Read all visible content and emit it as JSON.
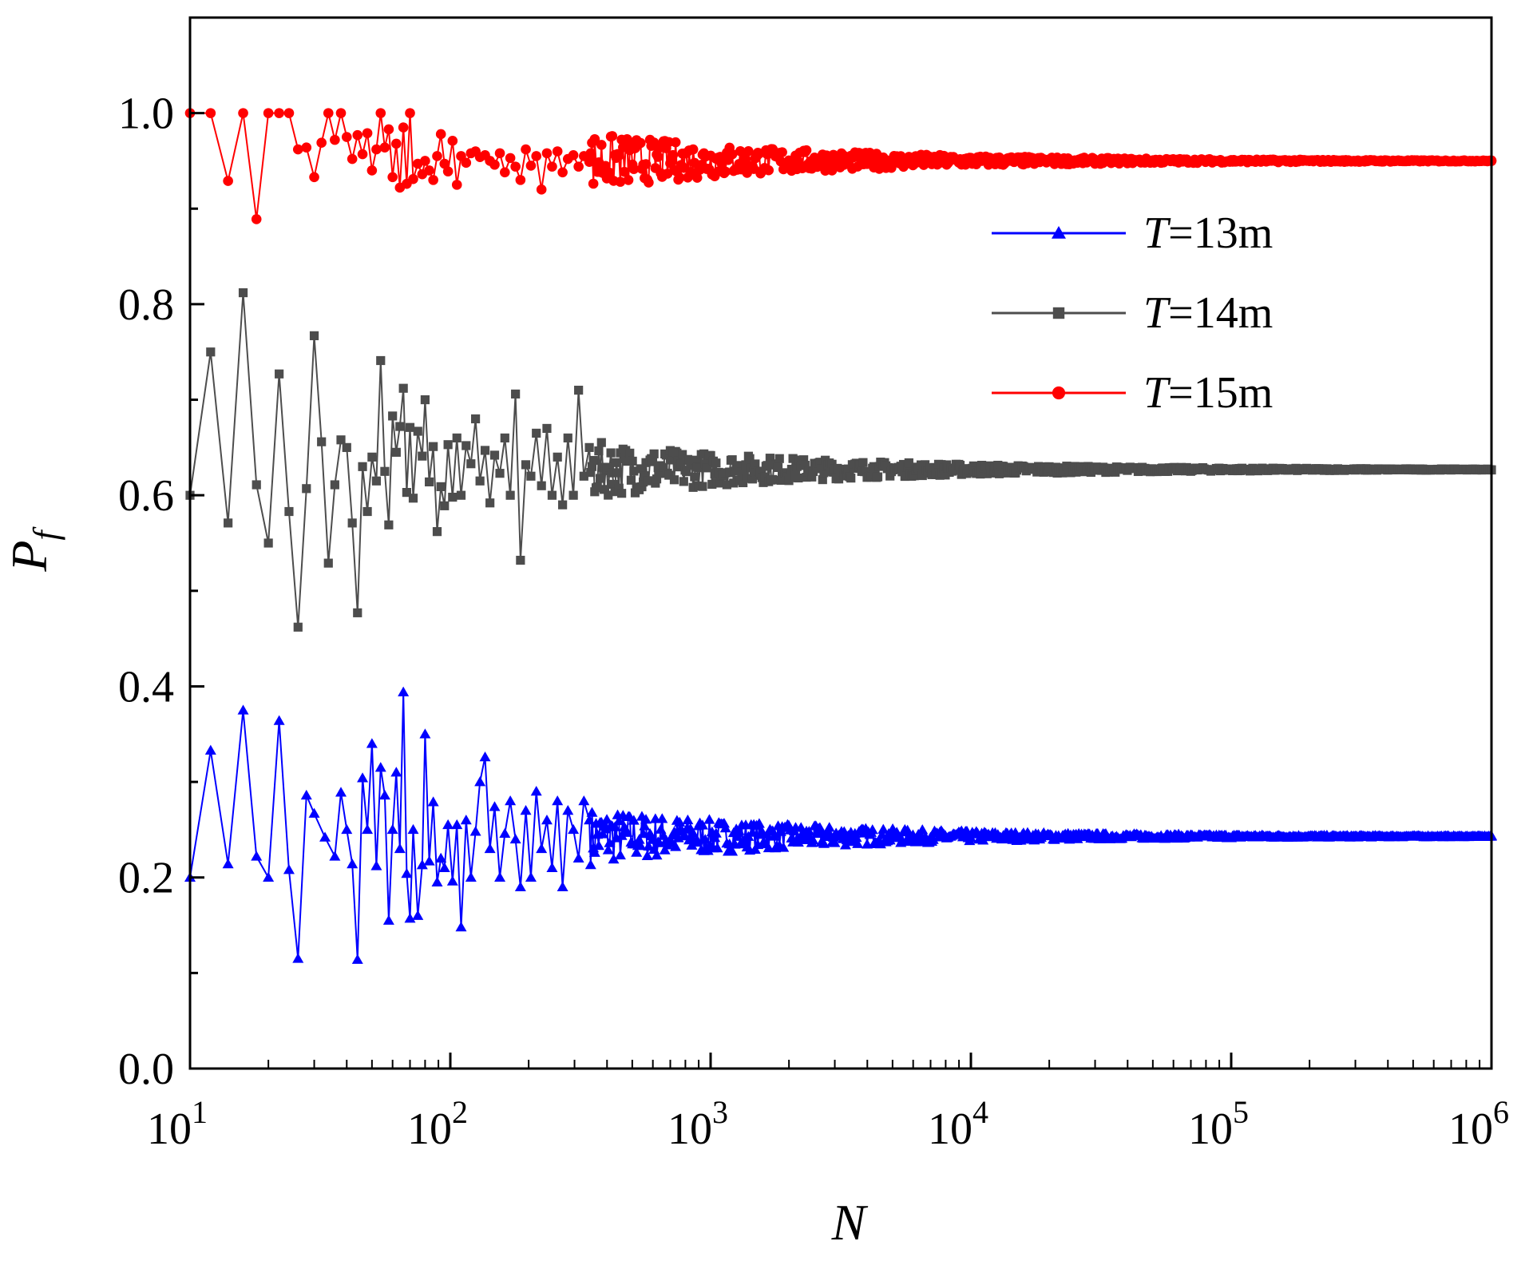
{
  "chart_data": {
    "type": "line",
    "xscale": "log",
    "xlim": [
      10,
      1000000
    ],
    "ylim": [
      0,
      1.1
    ],
    "xlabel": "N",
    "ylabel_main": "P",
    "ylabel_sub": "f",
    "xtick_exponents": [
      "1",
      "2",
      "3",
      "4",
      "5",
      "6"
    ],
    "xtick_base": "10",
    "ytick_values": [
      0.0,
      0.2,
      0.4,
      0.6,
      0.8,
      1.0
    ],
    "ytick_labels": [
      "0.0",
      "0.2",
      "0.4",
      "0.6",
      "0.8",
      "1.0"
    ],
    "legend_position": "right",
    "series": [
      {
        "name": "T=13m",
        "legend_italic": "T",
        "legend_rest": "=13m",
        "color": "#0000ff",
        "marker": "triangle",
        "final": 0.243,
        "x": [
          10,
          12,
          14,
          16,
          18,
          20,
          22,
          24,
          26,
          28,
          30,
          33,
          36,
          38,
          40,
          42,
          44,
          46,
          48,
          50,
          52,
          54,
          56,
          58,
          60,
          62,
          64,
          66,
          68,
          70,
          72,
          75,
          78,
          80,
          83,
          86,
          89,
          92,
          95,
          98,
          102,
          106,
          110,
          115,
          120,
          125,
          130,
          136,
          142,
          148,
          155,
          162,
          170,
          178,
          186,
          195,
          204,
          214,
          224,
          235,
          246,
          258,
          270,
          283,
          297,
          311,
          326,
          342
        ],
        "y": [
          0.2,
          0.333,
          0.214,
          0.375,
          0.222,
          0.2,
          0.364,
          0.208,
          0.115,
          0.286,
          0.267,
          0.242,
          0.222,
          0.289,
          0.25,
          0.214,
          0.114,
          0.304,
          0.25,
          0.34,
          0.212,
          0.315,
          0.286,
          0.155,
          0.25,
          0.31,
          0.23,
          0.394,
          0.204,
          0.157,
          0.25,
          0.16,
          0.213,
          0.35,
          0.217,
          0.279,
          0.195,
          0.22,
          0.21,
          0.255,
          0.196,
          0.255,
          0.148,
          0.26,
          0.2,
          0.248,
          0.3,
          0.326,
          0.23,
          0.274,
          0.2,
          0.246,
          0.28,
          0.24,
          0.19,
          0.27,
          0.2,
          0.29,
          0.23,
          0.26,
          0.21,
          0.28,
          0.19,
          0.27,
          0.25,
          0.22,
          0.28,
          0.26
        ]
      },
      {
        "name": "T=14m",
        "legend_italic": "T",
        "legend_rest": "=14m",
        "color": "#4d4d4d",
        "marker": "square",
        "final": 0.627,
        "x": [
          10,
          12,
          14,
          16,
          18,
          20,
          22,
          24,
          26,
          28,
          30,
          32,
          34,
          36,
          38,
          40,
          42,
          44,
          46,
          48,
          50,
          52,
          54,
          56,
          58,
          60,
          62,
          64,
          66,
          68,
          70,
          72,
          75,
          78,
          80,
          83,
          86,
          89,
          92,
          95,
          98,
          102,
          106,
          110,
          115,
          120,
          125,
          130,
          136,
          142,
          148,
          155,
          162,
          170,
          178,
          186,
          195,
          204,
          214,
          224,
          235,
          246,
          258,
          270,
          283,
          297,
          311,
          326,
          342
        ],
        "y": [
          0.6,
          0.75,
          0.571,
          0.812,
          0.611,
          0.55,
          0.727,
          0.583,
          0.462,
          0.607,
          0.767,
          0.656,
          0.529,
          0.611,
          0.658,
          0.65,
          0.571,
          0.477,
          0.63,
          0.583,
          0.64,
          0.615,
          0.741,
          0.625,
          0.569,
          0.683,
          0.645,
          0.672,
          0.712,
          0.603,
          0.671,
          0.597,
          0.667,
          0.641,
          0.7,
          0.614,
          0.651,
          0.562,
          0.609,
          0.589,
          0.653,
          0.598,
          0.66,
          0.6,
          0.652,
          0.633,
          0.68,
          0.615,
          0.647,
          0.592,
          0.642,
          0.623,
          0.66,
          0.6,
          0.706,
          0.532,
          0.632,
          0.62,
          0.665,
          0.61,
          0.67,
          0.6,
          0.64,
          0.59,
          0.66,
          0.6,
          0.71,
          0.62,
          0.65
        ]
      },
      {
        "name": "T=15m",
        "legend_italic": "T",
        "legend_rest": "=15m",
        "color": "#ff0000",
        "marker": "circle",
        "final": 0.95,
        "x": [
          10,
          12,
          14,
          16,
          18,
          20,
          22,
          24,
          26,
          28,
          30,
          32,
          34,
          36,
          38,
          40,
          42,
          44,
          46,
          48,
          50,
          52,
          54,
          56,
          58,
          60,
          62,
          64,
          66,
          68,
          70,
          72,
          75,
          78,
          80,
          83,
          86,
          89,
          92,
          95,
          98,
          102,
          106,
          110,
          115,
          120,
          125,
          130,
          136,
          142,
          148,
          155,
          162,
          170,
          178,
          186,
          195,
          204,
          214,
          224,
          235,
          246,
          258,
          270,
          283,
          297,
          311,
          326,
          342
        ],
        "y": [
          1.0,
          1.0,
          0.929,
          1.0,
          0.889,
          1.0,
          1.0,
          1.0,
          0.962,
          0.964,
          0.933,
          0.969,
          1.0,
          0.972,
          1.0,
          0.975,
          0.952,
          0.977,
          0.957,
          0.979,
          0.94,
          0.962,
          1.0,
          0.964,
          0.983,
          0.933,
          0.968,
          0.922,
          0.985,
          0.926,
          1.0,
          0.931,
          0.947,
          0.936,
          0.95,
          0.94,
          0.93,
          0.955,
          0.978,
          0.947,
          0.939,
          0.971,
          0.925,
          0.955,
          0.948,
          0.958,
          0.96,
          0.954,
          0.956,
          0.95,
          0.946,
          0.958,
          0.938,
          0.953,
          0.944,
          0.93,
          0.962,
          0.945,
          0.955,
          0.92,
          0.958,
          0.944,
          0.96,
          0.938,
          0.952,
          0.956,
          0.944,
          0.955,
          0.949
        ]
      }
    ]
  }
}
